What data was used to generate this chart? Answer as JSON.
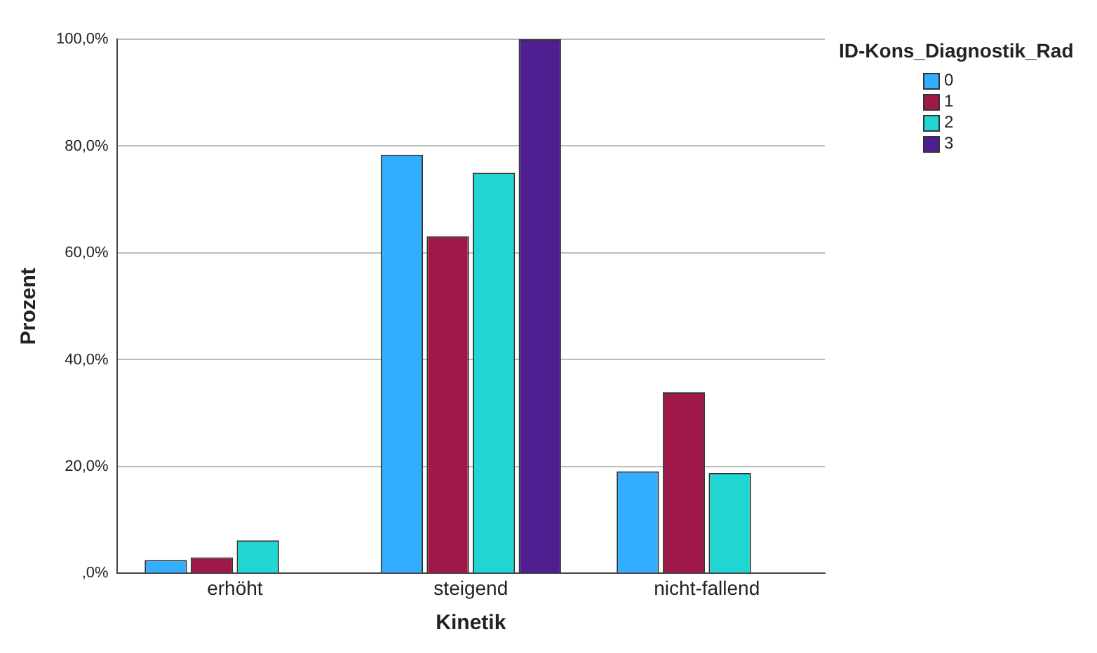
{
  "chart_data": {
    "type": "bar",
    "xlabel": "Kinetik",
    "ylabel": "Prozent",
    "legend_title": "ID-Kons_Diagnostik_Rad",
    "categories": [
      "erhöht",
      "steigend",
      "nicht-fallend"
    ],
    "series": [
      {
        "name": "0",
        "color": "#33adff",
        "values": [
          2.5,
          78.4,
          19.1
        ]
      },
      {
        "name": "1",
        "color": "#a0184a",
        "values": [
          3.0,
          63.1,
          33.9
        ]
      },
      {
        "name": "2",
        "color": "#21d6d2",
        "values": [
          6.2,
          75.0,
          18.8
        ]
      },
      {
        "name": "3",
        "color": "#4f1f91",
        "values": [
          0,
          100,
          0
        ]
      }
    ],
    "ylim": [
      0,
      100
    ],
    "yticks": [
      {
        "value": 0,
        "label": ",0%"
      },
      {
        "value": 20,
        "label": "20,0%"
      },
      {
        "value": 40,
        "label": "40,0%"
      },
      {
        "value": 60,
        "label": "60,0%"
      },
      {
        "value": 80,
        "label": "80,0%"
      },
      {
        "value": 100,
        "label": "100,0%"
      }
    ],
    "grid": "y",
    "legend": "top right"
  }
}
